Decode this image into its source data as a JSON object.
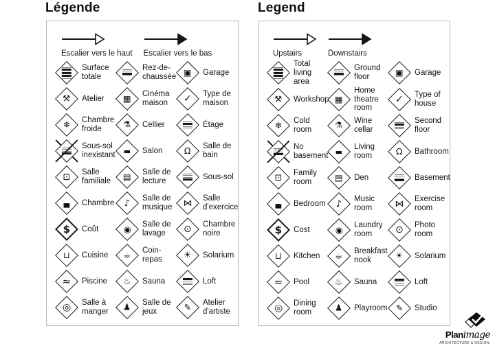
{
  "panels": [
    {
      "title": "Légende",
      "arrows": [
        {
          "label": "Escalier vers le haut",
          "style": "open"
        },
        {
          "label": "Escalier vers le bas",
          "style": "filled"
        }
      ],
      "items": [
        {
          "icon": "floor-total",
          "bars": "lFFFl",
          "label": "Surface totale"
        },
        {
          "icon": "floor-ground",
          "bars": "llFl",
          "label": "Rez-de-chaussée"
        },
        {
          "icon": "car",
          "glyph": "▣",
          "label": "Garage"
        },
        {
          "icon": "hammer",
          "glyph": "⚒",
          "label": "Atelier"
        },
        {
          "icon": "projector",
          "glyph": "▦",
          "label": "Cinéma maison"
        },
        {
          "icon": "checkmark",
          "glyph": "✓",
          "fs": "14",
          "label": "Type de maison"
        },
        {
          "icon": "thermometer",
          "glyph": "❄",
          "label": "Chambre froide"
        },
        {
          "icon": "wine-bottle",
          "glyph": "⚗",
          "label": "Cellier"
        },
        {
          "icon": "floor-second",
          "bars": "lFll",
          "label": "Étage"
        },
        {
          "icon": "no-basement",
          "bars": "lllF",
          "crossed": true,
          "label": "Sous-sol inexistant"
        },
        {
          "icon": "sofa",
          "glyph": "▬",
          "fs": "11",
          "label": "Salon"
        },
        {
          "icon": "toilet",
          "glyph": "Ω",
          "label": "Salle de bain"
        },
        {
          "icon": "tv",
          "glyph": "⊡",
          "fs": "13",
          "label": "Salle familiale"
        },
        {
          "icon": "bookshelf",
          "glyph": "▤",
          "label": "Salle de lecture"
        },
        {
          "icon": "floor-basement",
          "bars": "lllF",
          "label": "Sous-sol"
        },
        {
          "icon": "bed",
          "glyph": "▄",
          "fs": "11",
          "label": "Chambre"
        },
        {
          "icon": "music-note",
          "glyph": "♪",
          "fs": "13",
          "label": "Salle de musique"
        },
        {
          "icon": "dumbbell",
          "glyph": "⋈",
          "fs": "13",
          "label": "Salle d'exercice"
        },
        {
          "icon": "dollar",
          "glyph": "$",
          "fs": "15",
          "heavy": true,
          "label": "Coût"
        },
        {
          "icon": "laundry",
          "glyph": "◉",
          "label": "Salle de lavage"
        },
        {
          "icon": "camera",
          "glyph": "⊙",
          "fs": "14",
          "label": "Chambre noire"
        },
        {
          "icon": "cooking-pot",
          "glyph": "⊔",
          "label": "Cuisine"
        },
        {
          "icon": "coffee-cup",
          "glyph": "☕",
          "label": "Coin-repas"
        },
        {
          "icon": "sun",
          "glyph": "☀",
          "label": "Solarium"
        },
        {
          "icon": "swimmer",
          "glyph": "≈",
          "fs": "15",
          "label": "Piscine"
        },
        {
          "icon": "sauna-person",
          "glyph": "♨",
          "label": "Sauna"
        },
        {
          "icon": "floor-loft",
          "bars": "Flll",
          "label": "Loft"
        },
        {
          "icon": "plate-cutlery",
          "glyph": "◎",
          "fs": "14",
          "label": "Salle à manger"
        },
        {
          "icon": "toy",
          "glyph": "♟",
          "label": "Salle de jeux"
        },
        {
          "icon": "paint-palette",
          "glyph": "✎",
          "label": "Atelier d'artiste"
        }
      ]
    },
    {
      "title": "Legend",
      "arrows": [
        {
          "label": "Upstairs",
          "style": "open"
        },
        {
          "label": "Downstairs",
          "style": "filled"
        }
      ],
      "items": [
        {
          "icon": "floor-total",
          "bars": "lFFFl",
          "label": "Total living area"
        },
        {
          "icon": "floor-ground",
          "bars": "llFl",
          "label": "Ground floor"
        },
        {
          "icon": "car",
          "glyph": "▣",
          "label": "Garage"
        },
        {
          "icon": "hammer",
          "glyph": "⚒",
          "label": "Workshop"
        },
        {
          "icon": "projector",
          "glyph": "▦",
          "label": "Home theatre room"
        },
        {
          "icon": "checkmark",
          "glyph": "✓",
          "fs": "14",
          "label": "Type of house"
        },
        {
          "icon": "thermometer",
          "glyph": "❄",
          "label": "Cold room"
        },
        {
          "icon": "wine-bottle",
          "glyph": "⚗",
          "label": "Wine cellar"
        },
        {
          "icon": "floor-second",
          "bars": "lFll",
          "label": "Second floor"
        },
        {
          "icon": "no-basement",
          "bars": "lllF",
          "crossed": true,
          "label": "No basement"
        },
        {
          "icon": "sofa",
          "glyph": "▬",
          "fs": "11",
          "label": "Living room"
        },
        {
          "icon": "toilet",
          "glyph": "Ω",
          "label": "Bathroom"
        },
        {
          "icon": "tv",
          "glyph": "⊡",
          "fs": "13",
          "label": "Family room"
        },
        {
          "icon": "bookshelf",
          "glyph": "▤",
          "label": "Den"
        },
        {
          "icon": "floor-basement",
          "bars": "lllF",
          "label": "Basement"
        },
        {
          "icon": "bed",
          "glyph": "▄",
          "fs": "11",
          "label": "Bedroom"
        },
        {
          "icon": "music-note",
          "glyph": "♪",
          "fs": "13",
          "label": "Music room"
        },
        {
          "icon": "dumbbell",
          "glyph": "⋈",
          "fs": "13",
          "label": "Exercise room"
        },
        {
          "icon": "dollar",
          "glyph": "$",
          "fs": "15",
          "heavy": true,
          "label": "Cost"
        },
        {
          "icon": "laundry",
          "glyph": "◉",
          "label": "Laundry room"
        },
        {
          "icon": "camera",
          "glyph": "⊙",
          "fs": "14",
          "label": "Photo room"
        },
        {
          "icon": "cooking-pot",
          "glyph": "⊔",
          "label": "Kitchen"
        },
        {
          "icon": "coffee-cup",
          "glyph": "☕",
          "label": "Breakfast nook"
        },
        {
          "icon": "sun",
          "glyph": "☀",
          "label": "Solarium"
        },
        {
          "icon": "swimmer",
          "glyph": "≈",
          "fs": "15",
          "label": "Pool"
        },
        {
          "icon": "sauna-person",
          "glyph": "♨",
          "label": "Sauna"
        },
        {
          "icon": "floor-loft",
          "bars": "Flll",
          "label": "Loft"
        },
        {
          "icon": "plate-cutlery",
          "glyph": "◎",
          "fs": "14",
          "label": "Dining room"
        },
        {
          "icon": "toy",
          "glyph": "♟",
          "label": "Playroom"
        },
        {
          "icon": "paint-palette",
          "glyph": "✎",
          "label": "Studio"
        }
      ]
    }
  ],
  "logo": {
    "brand_bold": "Plan",
    "brand_script": "image",
    "tagline": "ARCHITECTURE & DESIGN"
  },
  "colors": {
    "ink": "#141414",
    "box_border": "#b6b6b6",
    "background": "#ffffff"
  }
}
